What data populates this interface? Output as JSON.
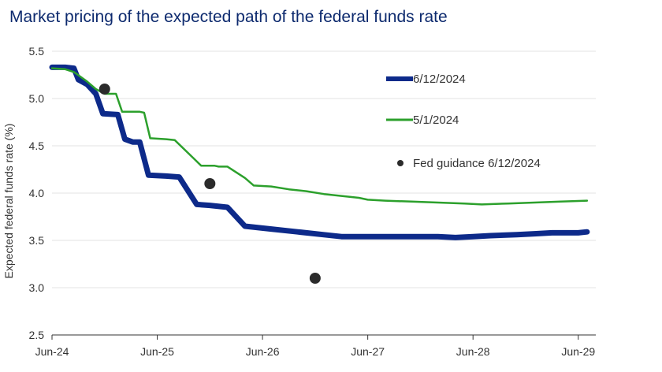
{
  "chart_data": {
    "type": "line",
    "title": "Market pricing of the expected path of the federal funds rate",
    "ylabel": "Expected federal funds rate (%)",
    "xlabel": "",
    "x_ticks": [
      "Jun-24",
      "Jun-25",
      "Jun-26",
      "Jun-27",
      "Jun-28",
      "Jun-29"
    ],
    "y_ticks": [
      "2.5",
      "3.0",
      "3.5",
      "4.0",
      "4.5",
      "5.0",
      "5.5"
    ],
    "ylim": [
      2.5,
      5.5
    ],
    "xlim": [
      0,
      62
    ],
    "legend_position": "right",
    "series": [
      {
        "name": "6/12/2024",
        "color": "#0d2a8a",
        "points": [
          [
            0,
            5.33
          ],
          [
            1.5,
            5.33
          ],
          [
            2.5,
            5.32
          ],
          [
            3,
            5.2
          ],
          [
            4,
            5.15
          ],
          [
            5,
            5.05
          ],
          [
            5.8,
            4.84
          ],
          [
            7.5,
            4.83
          ],
          [
            8.3,
            4.57
          ],
          [
            9.2,
            4.54
          ],
          [
            10,
            4.54
          ],
          [
            11,
            4.19
          ],
          [
            13,
            4.18
          ],
          [
            14.5,
            4.17
          ],
          [
            16.5,
            3.88
          ],
          [
            18,
            3.87
          ],
          [
            20,
            3.85
          ],
          [
            22,
            3.65
          ],
          [
            25,
            3.62
          ],
          [
            28,
            3.59
          ],
          [
            31,
            3.56
          ],
          [
            33,
            3.54
          ],
          [
            36,
            3.54
          ],
          [
            40,
            3.54
          ],
          [
            44,
            3.54
          ],
          [
            46,
            3.53
          ],
          [
            48,
            3.54
          ],
          [
            50,
            3.55
          ],
          [
            53,
            3.56
          ],
          [
            55,
            3.57
          ],
          [
            57,
            3.58
          ],
          [
            60,
            3.58
          ],
          [
            61,
            3.59
          ]
        ]
      },
      {
        "name": "5/1/2024",
        "color": "#2ca02c",
        "points": [
          [
            0,
            5.32
          ],
          [
            1.5,
            5.31
          ],
          [
            2.5,
            5.28
          ],
          [
            4,
            5.18
          ],
          [
            5,
            5.1
          ],
          [
            6,
            5.05
          ],
          [
            7.3,
            5.05
          ],
          [
            8,
            4.86
          ],
          [
            10,
            4.86
          ],
          [
            10.5,
            4.85
          ],
          [
            11.2,
            4.58
          ],
          [
            13,
            4.57
          ],
          [
            14,
            4.56
          ],
          [
            16,
            4.38
          ],
          [
            17,
            4.29
          ],
          [
            18.5,
            4.29
          ],
          [
            19,
            4.28
          ],
          [
            20,
            4.28
          ],
          [
            22,
            4.16
          ],
          [
            23,
            4.08
          ],
          [
            25,
            4.07
          ],
          [
            27,
            4.04
          ],
          [
            29,
            4.02
          ],
          [
            31,
            3.99
          ],
          [
            33,
            3.97
          ],
          [
            35,
            3.95
          ],
          [
            36,
            3.93
          ],
          [
            38,
            3.92
          ],
          [
            41,
            3.91
          ],
          [
            44,
            3.9
          ],
          [
            47,
            3.89
          ],
          [
            49,
            3.88
          ],
          [
            52,
            3.89
          ],
          [
            55,
            3.9
          ],
          [
            58,
            3.91
          ],
          [
            61,
            3.92
          ]
        ]
      },
      {
        "name": "Fed guidance 6/12/2024",
        "color": "#2b2b2b",
        "type": "scatter",
        "points": [
          [
            6,
            5.1
          ],
          [
            18,
            4.1
          ],
          [
            30,
            3.1
          ]
        ]
      }
    ]
  }
}
